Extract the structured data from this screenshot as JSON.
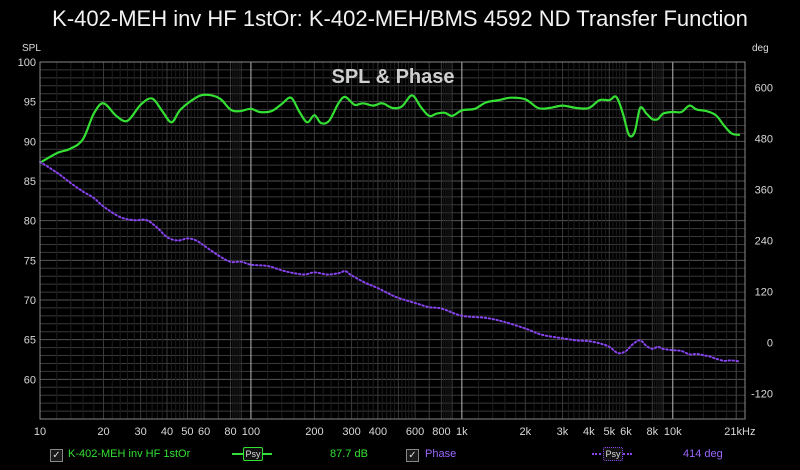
{
  "title": "K-402-MEH inv HF 1stOr: K-402-MEH/BMS 4592 ND Transfer Function",
  "chart_data": {
    "type": "line",
    "title": "SPL & Phase",
    "left_axis_label": "SPL",
    "right_axis_label": "deg",
    "x_scale": "log",
    "xlim": [
      10,
      22000
    ],
    "ylim_left": [
      55,
      100
    ],
    "ylim_right": [
      -180,
      660
    ],
    "x_ticks": [
      {
        "v": 10,
        "t": "10"
      },
      {
        "v": 20,
        "t": "20"
      },
      {
        "v": 30,
        "t": "30"
      },
      {
        "v": 40,
        "t": "40"
      },
      {
        "v": 50,
        "t": "50"
      },
      {
        "v": 60,
        "t": "60"
      },
      {
        "v": 80,
        "t": "80"
      },
      {
        "v": 100,
        "t": "100"
      },
      {
        "v": 200,
        "t": "200"
      },
      {
        "v": 300,
        "t": "300"
      },
      {
        "v": 400,
        "t": "400"
      },
      {
        "v": 600,
        "t": "600"
      },
      {
        "v": 800,
        "t": "800"
      },
      {
        "v": 1000,
        "t": "1k"
      },
      {
        "v": 2000,
        "t": "2k"
      },
      {
        "v": 3000,
        "t": "3k"
      },
      {
        "v": 4000,
        "t": "4k"
      },
      {
        "v": 5000,
        "t": "5k"
      },
      {
        "v": 6000,
        "t": "6k"
      },
      {
        "v": 8000,
        "t": "8k"
      },
      {
        "v": 10000,
        "t": "10k"
      },
      {
        "v": 20800,
        "t": "21kHz"
      }
    ],
    "y_ticks_left": [
      100,
      95,
      90,
      85,
      80,
      75,
      70,
      65,
      60
    ],
    "y_ticks_right": [
      600,
      480,
      360,
      240,
      120,
      0,
      -120
    ],
    "series": [
      {
        "name": "K-402-MEH inv HF 1stOr",
        "axis": "left",
        "color": "#33e033",
        "style": "solid",
        "points": [
          [
            10,
            87.3
          ],
          [
            12,
            88.5
          ],
          [
            14,
            89.1
          ],
          [
            16,
            90.3
          ],
          [
            18,
            93.5
          ],
          [
            20,
            94.8
          ],
          [
            23,
            93.2
          ],
          [
            26,
            92.6
          ],
          [
            30,
            94.6
          ],
          [
            34,
            95.4
          ],
          [
            38,
            93.8
          ],
          [
            42,
            92.4
          ],
          [
            46,
            93.9
          ],
          [
            52,
            95.1
          ],
          [
            58,
            95.8
          ],
          [
            65,
            95.8
          ],
          [
            72,
            95.3
          ],
          [
            80,
            94.0
          ],
          [
            88,
            93.8
          ],
          [
            100,
            94.1
          ],
          [
            110,
            93.7
          ],
          [
            125,
            93.8
          ],
          [
            140,
            94.7
          ],
          [
            155,
            95.5
          ],
          [
            170,
            93.7
          ],
          [
            185,
            92.4
          ],
          [
            200,
            93.3
          ],
          [
            215,
            92.3
          ],
          [
            235,
            92.6
          ],
          [
            260,
            94.8
          ],
          [
            280,
            95.6
          ],
          [
            310,
            94.6
          ],
          [
            340,
            94.8
          ],
          [
            380,
            94.5
          ],
          [
            420,
            94.8
          ],
          [
            470,
            94.2
          ],
          [
            520,
            94.4
          ],
          [
            580,
            95.8
          ],
          [
            640,
            94.3
          ],
          [
            700,
            93.2
          ],
          [
            760,
            93.5
          ],
          [
            830,
            93.6
          ],
          [
            900,
            93.2
          ],
          [
            1000,
            93.9
          ],
          [
            1150,
            94.1
          ],
          [
            1300,
            94.9
          ],
          [
            1500,
            95.2
          ],
          [
            1700,
            95.5
          ],
          [
            2000,
            95.3
          ],
          [
            2300,
            94.2
          ],
          [
            2600,
            94.2
          ],
          [
            3000,
            94.5
          ],
          [
            3500,
            94.2
          ],
          [
            4000,
            94.2
          ],
          [
            4500,
            95.2
          ],
          [
            5000,
            95.2
          ],
          [
            5400,
            95.6
          ],
          [
            5800,
            93.5
          ],
          [
            6200,
            90.8
          ],
          [
            6600,
            91.2
          ],
          [
            7000,
            94.2
          ],
          [
            7500,
            93.5
          ],
          [
            8000,
            92.8
          ],
          [
            8500,
            92.8
          ],
          [
            9000,
            93.5
          ],
          [
            10000,
            93.7
          ],
          [
            11000,
            93.7
          ],
          [
            12000,
            94.5
          ],
          [
            13000,
            94.0
          ],
          [
            14500,
            93.8
          ],
          [
            16000,
            93.3
          ],
          [
            17500,
            92.0
          ],
          [
            19000,
            91.0
          ],
          [
            20800,
            90.8
          ]
        ]
      },
      {
        "name": "Phase",
        "axis": "right",
        "color": "#8844ee",
        "style": "dotted",
        "points": [
          [
            10,
            425
          ],
          [
            12,
            400
          ],
          [
            14,
            375
          ],
          [
            16,
            355
          ],
          [
            18,
            340
          ],
          [
            20,
            320
          ],
          [
            24,
            295
          ],
          [
            28,
            288
          ],
          [
            32,
            288
          ],
          [
            36,
            270
          ],
          [
            40,
            248
          ],
          [
            45,
            240
          ],
          [
            50,
            245
          ],
          [
            55,
            240
          ],
          [
            60,
            228
          ],
          [
            70,
            205
          ],
          [
            80,
            190
          ],
          [
            90,
            190
          ],
          [
            100,
            183
          ],
          [
            120,
            180
          ],
          [
            140,
            170
          ],
          [
            160,
            163
          ],
          [
            180,
            160
          ],
          [
            200,
            165
          ],
          [
            230,
            160
          ],
          [
            260,
            163
          ],
          [
            280,
            168
          ],
          [
            300,
            158
          ],
          [
            350,
            140
          ],
          [
            400,
            128
          ],
          [
            450,
            115
          ],
          [
            500,
            105
          ],
          [
            600,
            93
          ],
          [
            700,
            83
          ],
          [
            800,
            80
          ],
          [
            1000,
            63
          ],
          [
            1300,
            58
          ],
          [
            1600,
            48
          ],
          [
            2000,
            33
          ],
          [
            2400,
            18
          ],
          [
            3000,
            10
          ],
          [
            3500,
            5
          ],
          [
            4000,
            3
          ],
          [
            4500,
            -2
          ],
          [
            5000,
            -10
          ],
          [
            5500,
            -25
          ],
          [
            6000,
            -20
          ],
          [
            6500,
            -3
          ],
          [
            7000,
            5
          ],
          [
            7500,
            -8
          ],
          [
            8000,
            -15
          ],
          [
            8500,
            -10
          ],
          [
            9000,
            -15
          ],
          [
            10000,
            -18
          ],
          [
            11000,
            -20
          ],
          [
            12000,
            -28
          ],
          [
            13000,
            -27
          ],
          [
            14000,
            -30
          ],
          [
            15000,
            -33
          ],
          [
            16000,
            -38
          ],
          [
            17500,
            -43
          ],
          [
            19000,
            -42
          ],
          [
            20800,
            -45
          ]
        ]
      }
    ],
    "legend": {
      "spl_label": "K-402-MEH inv HF 1stOr",
      "spl_badge": "Psy",
      "spl_value": "87.7 dB",
      "phase_label": "Phase",
      "phase_badge": "Psy",
      "phase_value": "414 deg"
    },
    "colors": {
      "background": "#000000",
      "grid_major": "#b8b8b8",
      "grid_minor": "#3a3a3a",
      "tick_text": "#d8d8d8"
    }
  }
}
